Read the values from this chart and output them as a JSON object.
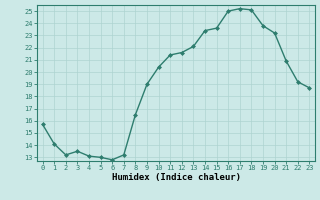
{
  "x": [
    0,
    1,
    2,
    3,
    4,
    5,
    6,
    7,
    8,
    9,
    10,
    11,
    12,
    13,
    14,
    15,
    16,
    17,
    18,
    19,
    20,
    21,
    22,
    23
  ],
  "y": [
    15.7,
    14.1,
    13.2,
    13.5,
    13.1,
    13.0,
    12.8,
    13.2,
    16.5,
    19.0,
    20.4,
    21.4,
    21.6,
    22.1,
    23.4,
    23.6,
    25.0,
    25.2,
    25.1,
    23.8,
    23.2,
    20.9,
    19.2,
    18.7
  ],
  "line_color": "#2e7d6e",
  "marker": "D",
  "marker_size": 2.0,
  "line_width": 1.0,
  "bg_color": "#cce9e7",
  "grid_color": "#aed4d1",
  "xlabel": "Humidex (Indice chaleur)",
  "xlim": [
    -0.5,
    23.5
  ],
  "ylim": [
    12.7,
    25.5
  ],
  "yticks": [
    13,
    14,
    15,
    16,
    17,
    18,
    19,
    20,
    21,
    22,
    23,
    24,
    25
  ],
  "xticks": [
    0,
    1,
    2,
    3,
    4,
    5,
    6,
    7,
    8,
    9,
    10,
    11,
    12,
    13,
    14,
    15,
    16,
    17,
    18,
    19,
    20,
    21,
    22,
    23
  ],
  "tick_label_fontsize": 5.0,
  "xlabel_fontsize": 6.5,
  "tick_color": "#2e7d6e",
  "spine_color": "#2e7d6e"
}
